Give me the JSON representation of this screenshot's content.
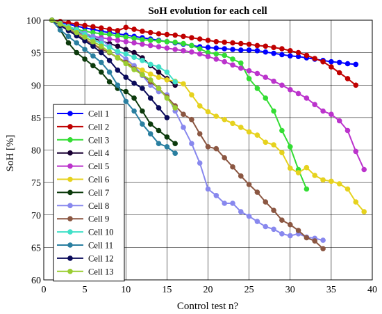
{
  "chart_data": {
    "type": "line",
    "title": "SoH evolution for each cell",
    "xlabel": "Control test n?",
    "ylabel": "SoH [%]",
    "xlim": [
      0,
      40
    ],
    "ylim": [
      60,
      100
    ],
    "xticks": [
      0,
      5,
      10,
      15,
      20,
      25,
      30,
      35,
      40
    ],
    "yticks": [
      60,
      65,
      70,
      75,
      80,
      85,
      90,
      95,
      100
    ],
    "grid": true,
    "legend_position": "left",
    "series": [
      {
        "name": "Cell 1",
        "color": "#0000ff",
        "x": [
          1,
          2,
          3,
          4,
          5,
          6,
          7,
          8,
          9,
          10,
          11,
          12,
          13,
          14,
          15,
          16,
          17,
          18,
          19,
          20,
          21,
          22,
          23,
          24,
          25,
          26,
          27,
          28,
          29,
          30,
          31,
          32,
          33,
          34,
          35,
          36,
          37,
          38
        ],
        "y": [
          100,
          99.7,
          99.4,
          99.1,
          98.8,
          98.6,
          98.3,
          98.1,
          97.9,
          97.7,
          97.5,
          97.3,
          97.1,
          96.9,
          96.7,
          96.5,
          96.3,
          96.1,
          95.9,
          95.8,
          95.7,
          95.6,
          95.5,
          95.4,
          95.4,
          95.3,
          95.1,
          94.9,
          94.7,
          94.5,
          94.4,
          94.2,
          94.0,
          93.8,
          93.6,
          93.5,
          93.3,
          93.2
        ]
      },
      {
        "name": "Cell 2",
        "color": "#c00000",
        "x": [
          1,
          2,
          3,
          4,
          5,
          6,
          7,
          8,
          9,
          10,
          11,
          12,
          13,
          14,
          15,
          16,
          17,
          18,
          19,
          20,
          21,
          22,
          23,
          24,
          25,
          26,
          27,
          28,
          29,
          30,
          31,
          32,
          33,
          34,
          35,
          36,
          37,
          38
        ],
        "y": [
          100,
          99.8,
          99.6,
          99.4,
          99.2,
          99.0,
          98.8,
          98.6,
          98.4,
          98.9,
          98.6,
          98.3,
          98.1,
          97.9,
          97.8,
          97.7,
          97.5,
          97.3,
          97.1,
          96.9,
          96.7,
          96.6,
          96.5,
          96.4,
          96.3,
          96.1,
          96.0,
          95.8,
          95.6,
          95.3,
          95.0,
          94.6,
          94.1,
          93.6,
          92.8,
          91.9,
          91.0,
          90.0
        ]
      },
      {
        "name": "Cell 3",
        "color": "#33dd33",
        "x": [
          1,
          2,
          3,
          4,
          5,
          6,
          7,
          8,
          9,
          10,
          11,
          12,
          13,
          14,
          15,
          16,
          17,
          18,
          19,
          20,
          21,
          22,
          23,
          24,
          25,
          26,
          27,
          28,
          29,
          30,
          31,
          32
        ],
        "y": [
          100,
          99.5,
          99.0,
          98.6,
          98.3,
          98.1,
          97.9,
          97.8,
          97.6,
          97.4,
          97.2,
          97.0,
          96.9,
          96.8,
          96.7,
          96.6,
          96.4,
          96.1,
          95.6,
          95.0,
          94.8,
          94.6,
          94.0,
          93.4,
          91.0,
          89.5,
          88.0,
          86.0,
          83.0,
          80.5,
          77.0,
          74.0
        ]
      },
      {
        "name": "Cell 4",
        "color": "#1a0033",
        "x": [
          1,
          2,
          3,
          4,
          5,
          6,
          7,
          8,
          9,
          10,
          11,
          12,
          13,
          14,
          15,
          16
        ],
        "y": [
          100,
          99.5,
          99.0,
          98.4,
          97.8,
          97.2,
          96.8,
          96.4,
          96.0,
          95.5,
          95.0,
          94.2,
          93.0,
          92.0,
          91.0,
          90.0
        ]
      },
      {
        "name": "Cell 5",
        "color": "#bb33cc",
        "x": [
          1,
          2,
          3,
          4,
          5,
          6,
          7,
          8,
          9,
          10,
          11,
          12,
          13,
          14,
          15,
          16,
          17,
          18,
          19,
          20,
          21,
          22,
          23,
          24,
          25,
          26,
          27,
          28,
          29,
          30,
          31,
          32,
          33,
          34,
          35,
          36,
          37,
          38,
          39
        ],
        "y": [
          100,
          99.2,
          98.6,
          98.1,
          97.7,
          97.5,
          97.3,
          97.1,
          96.9,
          96.7,
          96.5,
          96.3,
          96.1,
          95.9,
          95.7,
          95.5,
          95.3,
          95.1,
          94.8,
          94.4,
          94.0,
          93.6,
          93.1,
          92.6,
          92.2,
          91.8,
          91.2,
          90.6,
          90.0,
          89.3,
          88.7,
          88.0,
          87.0,
          86.0,
          85.5,
          84.5,
          83.0,
          79.8,
          77.0
        ]
      },
      {
        "name": "Cell 6",
        "color": "#e6d21e",
        "x": [
          1,
          2,
          3,
          4,
          5,
          6,
          7,
          8,
          9,
          10,
          11,
          12,
          13,
          14,
          15,
          16,
          17,
          18,
          19,
          20,
          21,
          22,
          23,
          24,
          25,
          26,
          27,
          28,
          29,
          30,
          31,
          32,
          33,
          34,
          35,
          36,
          37,
          38,
          39
        ],
        "y": [
          100,
          99.2,
          98.5,
          97.8,
          97.1,
          96.3,
          95.7,
          95.0,
          94.3,
          93.5,
          92.9,
          92.3,
          91.7,
          91.2,
          90.8,
          90.6,
          90.2,
          88.5,
          86.8,
          85.9,
          85.2,
          84.7,
          84.1,
          83.5,
          82.8,
          82.3,
          81.2,
          80.8,
          79.6,
          77.2,
          76.5,
          77.3,
          76.1,
          75.4,
          75.2,
          74.8,
          74.0,
          72.0,
          70.5
        ]
      },
      {
        "name": "Cell 7",
        "color": "#0d3b0d",
        "x": [
          1,
          2,
          3,
          4,
          5,
          6,
          7,
          8,
          9,
          10,
          11,
          12,
          13,
          14,
          15,
          16
        ],
        "y": [
          100,
          98.5,
          96.5,
          95.0,
          94.0,
          93.0,
          92.0,
          90.5,
          89.5,
          89.0,
          88.0,
          86.0,
          84.0,
          83.0,
          82.0,
          81.0
        ]
      },
      {
        "name": "Cell 8",
        "color": "#8888ee",
        "x": [
          1,
          2,
          3,
          4,
          5,
          6,
          7,
          8,
          9,
          10,
          11,
          12,
          13,
          14,
          15,
          16,
          17,
          18,
          19,
          20,
          21,
          22,
          23,
          24,
          25,
          26,
          27,
          28,
          29,
          30,
          31,
          32,
          33,
          34
        ],
        "y": [
          100,
          99.5,
          99.0,
          98.5,
          98.0,
          97.5,
          97.0,
          96.0,
          95.0,
          94.0,
          93.0,
          91.5,
          90.0,
          89.0,
          88.5,
          86.0,
          83.5,
          81.0,
          78.0,
          74.0,
          73.0,
          71.8,
          71.8,
          70.5,
          69.8,
          69.0,
          68.2,
          67.8,
          67.1,
          66.8,
          67.1,
          66.6,
          66.4,
          66.1
        ]
      },
      {
        "name": "Cell 9",
        "color": "#8b5742",
        "x": [
          1,
          2,
          3,
          4,
          5,
          6,
          7,
          8,
          9,
          10,
          11,
          12,
          13,
          14,
          15,
          16,
          17,
          18,
          19,
          20,
          21,
          22,
          23,
          24,
          25,
          26,
          27,
          28,
          29,
          30,
          31,
          32,
          33,
          34
        ],
        "y": [
          100,
          99.2,
          98.5,
          97.8,
          97.0,
          96.3,
          95.5,
          95.0,
          94.2,
          93.5,
          92.5,
          91.6,
          90.5,
          89.5,
          88.2,
          86.8,
          85.5,
          84.7,
          82.5,
          80.5,
          80.2,
          78.8,
          77.4,
          76.0,
          74.7,
          73.5,
          72.0,
          70.7,
          69.2,
          68.5,
          67.6,
          66.5,
          66.0,
          64.8
        ]
      },
      {
        "name": "Cell 10",
        "color": "#40e0c8",
        "x": [
          1,
          2,
          3,
          4,
          5,
          6,
          7,
          8,
          9,
          10,
          11,
          12,
          13,
          14,
          15,
          16
        ],
        "y": [
          100,
          99.5,
          99.0,
          98.5,
          97.8,
          97.0,
          96.4,
          95.8,
          95.2,
          94.8,
          94.3,
          93.8,
          93.2,
          92.8,
          92.0,
          90.5
        ]
      },
      {
        "name": "Cell 11",
        "color": "#2a7fa0",
        "x": [
          1,
          2,
          3,
          4,
          5,
          6,
          7,
          8,
          9,
          10,
          11,
          12,
          13,
          14,
          15,
          16
        ],
        "y": [
          100,
          98.5,
          97.5,
          96.5,
          95.5,
          94.5,
          93.5,
          92.0,
          90.0,
          87.5,
          86.0,
          84.0,
          82.5,
          81.0,
          80.5,
          79.5
        ]
      },
      {
        "name": "Cell 12",
        "color": "#0a0a5a",
        "x": [
          1,
          2,
          3,
          4,
          5,
          6,
          7,
          8,
          9,
          10,
          11,
          12,
          13,
          14,
          15
        ],
        "y": [
          100,
          99.2,
          98.4,
          97.6,
          96.8,
          96.0,
          95.0,
          93.8,
          92.3,
          91.2,
          90.3,
          89.5,
          88.0,
          86.5,
          85.0
        ]
      },
      {
        "name": "Cell 13",
        "color": "#9acd32",
        "x": [
          1,
          2,
          3,
          4,
          5,
          6,
          7,
          8,
          9,
          10,
          11,
          12,
          13,
          14,
          15,
          16
        ],
        "y": [
          100,
          99.4,
          98.8,
          98.1,
          97.4,
          96.7,
          96.0,
          95.1,
          94.2,
          93.3,
          92.4,
          91.6,
          90.8,
          89.5,
          88.0,
          86.5
        ]
      }
    ]
  }
}
